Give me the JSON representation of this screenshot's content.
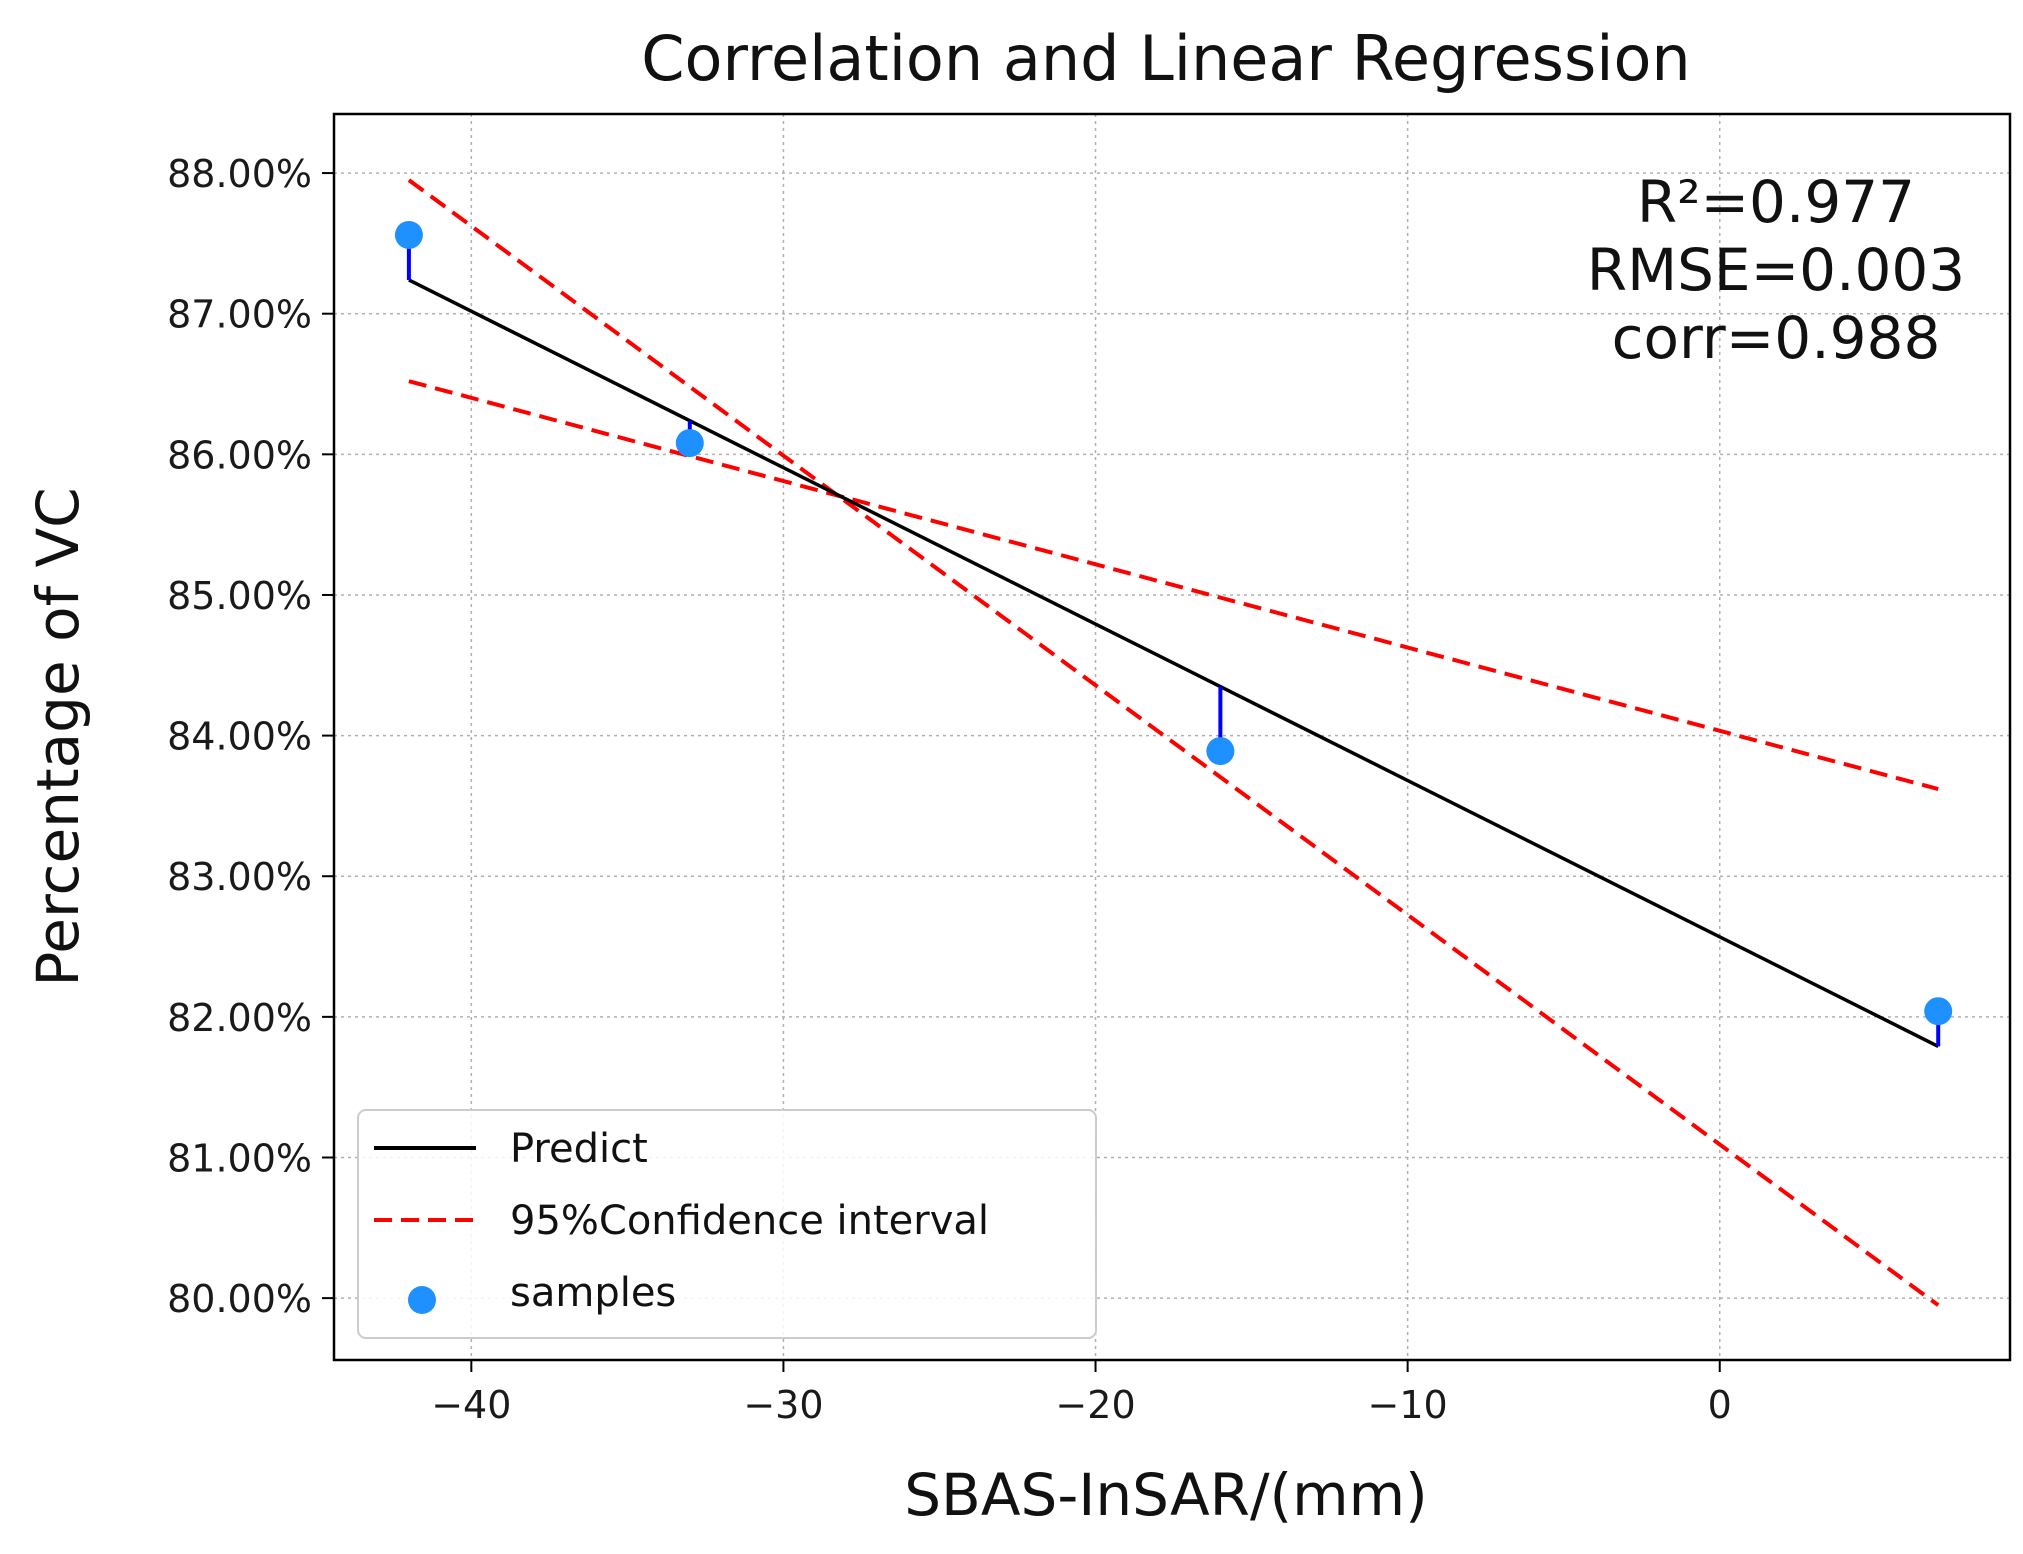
{
  "chart_data": {
    "type": "scatter",
    "title": "Correlation and Linear Regression",
    "xlabel": "SBAS-InSAR/(mm)",
    "ylabel": "Percentage of VC",
    "xlim": [
      -44.4,
      9.3
    ],
    "ylim": [
      79.56,
      88.42
    ],
    "x_ticks": [
      -40,
      -30,
      -20,
      -10,
      0
    ],
    "x_tick_labels": [
      "−40",
      "−30",
      "−20",
      "−10",
      "0"
    ],
    "y_ticks": [
      80,
      81,
      82,
      83,
      84,
      85,
      86,
      87,
      88
    ],
    "y_tick_labels": [
      "80.00%",
      "81.00%",
      "82.00%",
      "83.00%",
      "84.00%",
      "85.00%",
      "86.00%",
      "87.00%",
      "88.00%"
    ],
    "grid": true,
    "legend_position": "lower-left",
    "samples": {
      "name": "samples",
      "color": "#1e90ff",
      "x": [
        -42,
        -33,
        -16,
        7
      ],
      "y": [
        87.56,
        86.08,
        83.89,
        82.04
      ]
    },
    "predict": {
      "name": "Predict",
      "color": "#000000",
      "x": [
        -42,
        7
      ],
      "y": [
        87.24,
        81.79
      ]
    },
    "residual_color": "#0000ff",
    "confidence_interval": {
      "name": "95%Confidence interval",
      "color": "#ff0000",
      "upper": {
        "x": [
          -42,
          7
        ],
        "y": [
          87.95,
          79.95
        ]
      },
      "lower": {
        "x": [
          -42,
          7
        ],
        "y": [
          86.52,
          83.62
        ]
      }
    },
    "stats": [
      "R²=0.977",
      "RMSE=0.003",
      "corr=0.988"
    ]
  }
}
